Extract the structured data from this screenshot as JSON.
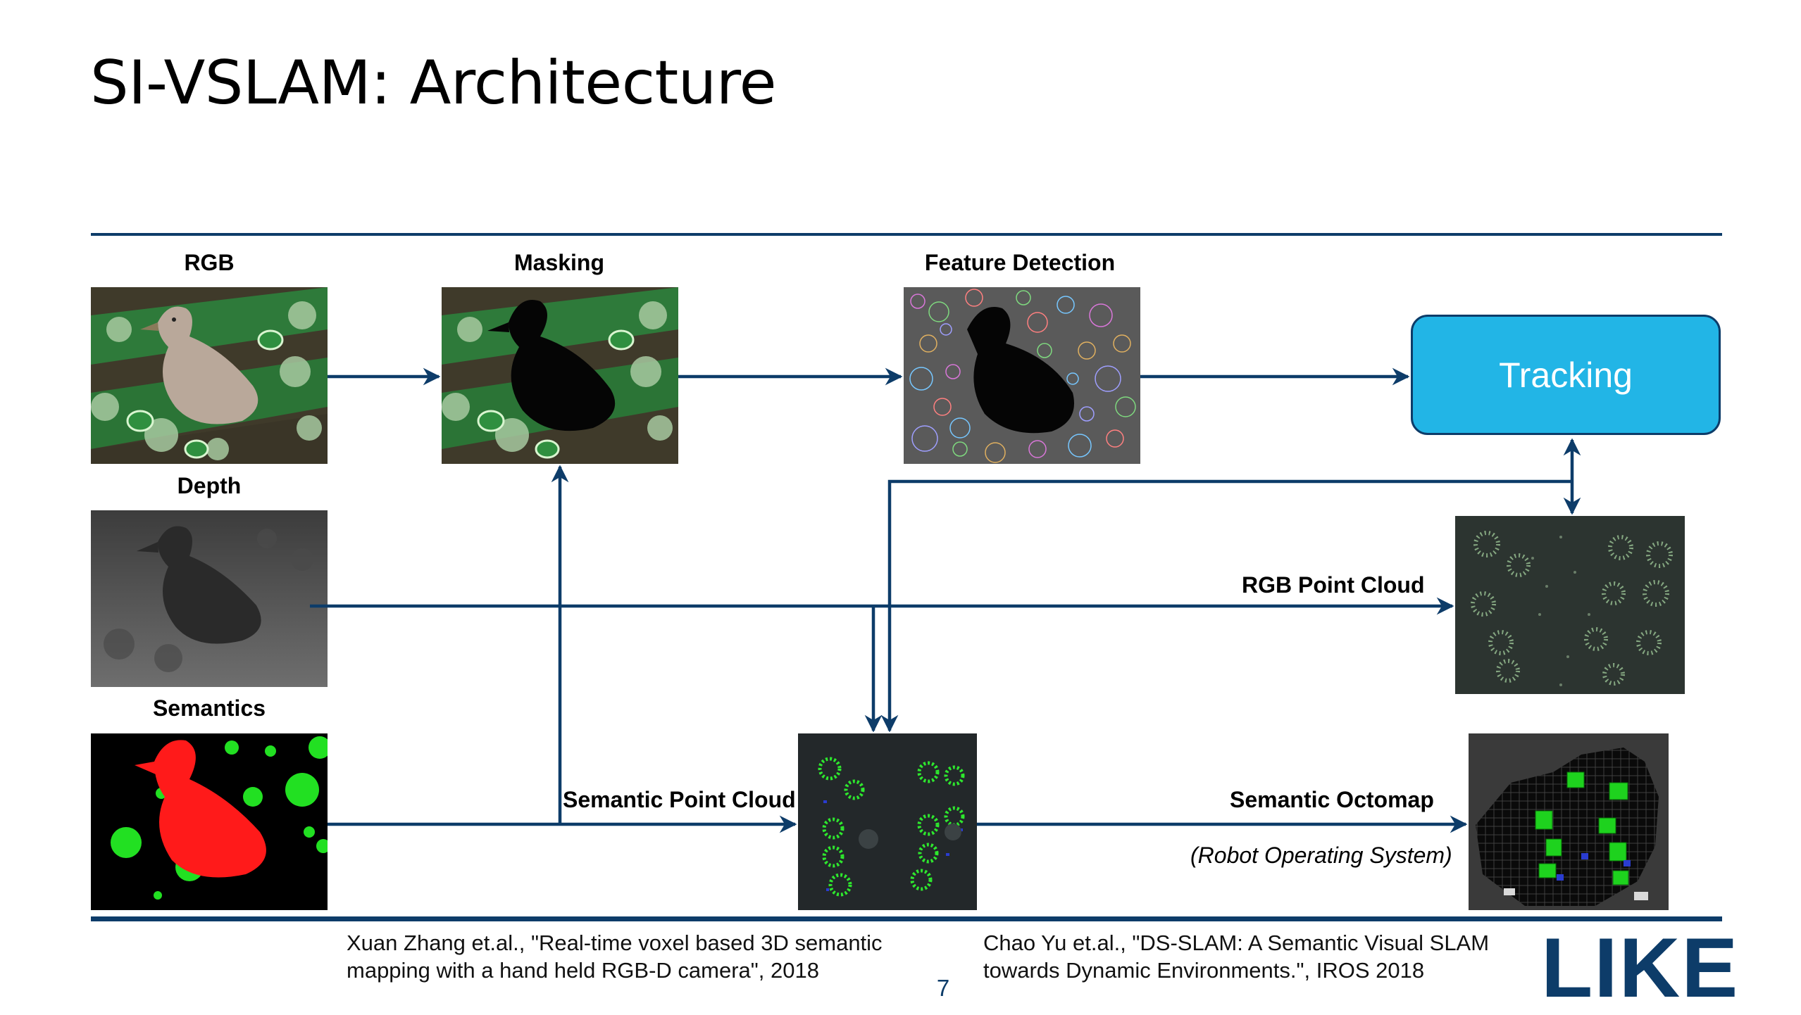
{
  "slide": {
    "title": "SI-VSLAM: Architecture",
    "page_number": "7",
    "logo_text": "LIKE"
  },
  "inputs": {
    "rgb_label": "RGB",
    "depth_label": "Depth",
    "semantics_label": "Semantics"
  },
  "stages": {
    "masking_label": "Masking",
    "feature_detection_label": "Feature Detection",
    "tracking_label": "Tracking"
  },
  "edges": {
    "rgb_point_cloud": "RGB Point Cloud",
    "semantic_point_cloud": "Semantic Point Cloud",
    "semantic_octomap": "Semantic Octomap",
    "ros_note": "(Robot Operating System)"
  },
  "references": {
    "left_line1": "Xuan Zhang et.al., \"Real-time voxel based 3D semantic",
    "left_line2": "mapping with a hand held RGB-D camera\", 2018",
    "right_line1": "Chao Yu et.al., \"DS-SLAM: A Semantic Visual SLAM",
    "right_line2": "towards Dynamic Environments.\", IROS 2018"
  },
  "colors": {
    "accent": "#0d3c69",
    "tracking_fill": "#22b5e6",
    "semantic_red": "#ff1a1a",
    "semantic_green": "#22e022"
  }
}
